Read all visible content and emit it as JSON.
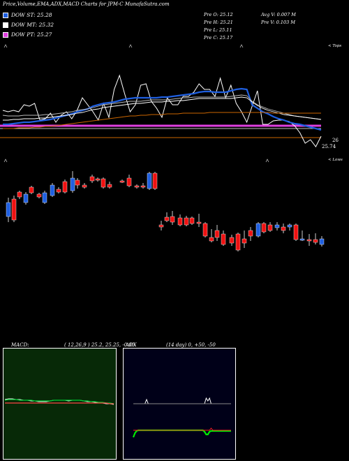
{
  "header": {
    "title": "Price,Volume,EMA,ADX,MACD Charts for JPM-C MunafaSutra.com",
    "legend": [
      {
        "label": "DOW ST: 25.28",
        "color": "#1f5fe0"
      },
      {
        "label": "DOW MT: 25.32",
        "color": "#ffffff"
      },
      {
        "label": "DOW PT: 25.27",
        "color": "#e040e0"
      }
    ],
    "info": [
      {
        "text": "Pre   O: 25.12"
      },
      {
        "text": "Pre   H: 25.21"
      },
      {
        "text": "Pre   L: 25.11"
      },
      {
        "text": "Pre   C: 25.17"
      },
      {
        "text": "Avg V: 0.007 M"
      },
      {
        "text": "Pre   V: 0.103 M"
      }
    ]
  },
  "top_right_label": "< Tops",
  "bottom_right_label": "< Lows",
  "macd_label": "MACD:",
  "macd_params": "( 12,26,9 ) 25.2, 25.25, -0.05",
  "adx_label": "ADX",
  "adx_params": "(14  day) 0, +50, -50",
  "chart_data": [
    {
      "type": "line",
      "name": "ema-panel",
      "right_labels": [
        "26",
        "25.74"
      ],
      "x": [
        1,
        2,
        3,
        4,
        5,
        6,
        7,
        8,
        9,
        10,
        11,
        12,
        13,
        14,
        15,
        16,
        17,
        18,
        19,
        20,
        21,
        22,
        23,
        24,
        25,
        26,
        27,
        28,
        29,
        30,
        31,
        32,
        33,
        34,
        35,
        36,
        37,
        38,
        39,
        40,
        41,
        42,
        43,
        44,
        45,
        46,
        47,
        48,
        49,
        50,
        51,
        52,
        53,
        54,
        55,
        56,
        57,
        58,
        59,
        60,
        61
      ],
      "series": [
        {
          "color": "#ffffff",
          "values": [
            158,
            160,
            158,
            160,
            150,
            152,
            148,
            172,
            170,
            162,
            175,
            165,
            160,
            170,
            158,
            140,
            150,
            160,
            172,
            148,
            168,
            128,
            108,
            135,
            160,
            150,
            122,
            120,
            145,
            155,
            168,
            140,
            150,
            150,
            138,
            138,
            132,
            120,
            128,
            128,
            138,
            112,
            140,
            122,
            148,
            160,
            175,
            152,
            130,
            178,
            178,
            173,
            172,
            172,
            174,
            180,
            190,
            205,
            200,
            210,
            195
          ]
        },
        {
          "color": "#1f5fe0",
          "values": [
            178,
            178,
            177,
            176,
            175,
            175,
            174,
            173,
            172,
            171,
            169,
            167,
            165,
            163,
            160,
            158,
            156,
            152,
            150,
            148,
            147,
            146,
            144,
            142,
            141,
            140,
            140,
            140,
            140,
            140,
            139,
            139,
            138,
            137,
            136,
            135,
            134,
            132,
            131,
            131,
            132,
            132,
            132,
            130,
            128,
            127,
            128,
            150,
            155,
            160,
            163,
            167,
            170,
            172,
            175,
            177,
            178,
            180,
            182,
            184,
            186
          ]
        },
        {
          "color": "#bbbbbb",
          "values": [
            165,
            166,
            166,
            166,
            165,
            165,
            165,
            165,
            164,
            164,
            163,
            162,
            161,
            160,
            158,
            157,
            156,
            154,
            152,
            150,
            149,
            148,
            147,
            146,
            145,
            145,
            145,
            144,
            143,
            143,
            143,
            143,
            142,
            141,
            140,
            140,
            139,
            139,
            139,
            139,
            139,
            139,
            139,
            138,
            137,
            136,
            137,
            145,
            150,
            153,
            156,
            158,
            160,
            162,
            164,
            166,
            167,
            168,
            169,
            170,
            171
          ]
        },
        {
          "color": "#ffffff",
          "values": [
            172,
            172,
            171,
            171,
            170,
            170,
            170,
            169,
            169,
            168,
            167,
            166,
            165,
            164,
            162,
            161,
            159,
            157,
            156,
            154,
            153,
            152,
            151,
            150,
            149,
            148,
            148,
            147,
            146,
            146,
            146,
            145,
            145,
            144,
            144,
            143,
            142,
            141,
            141,
            141,
            141,
            141,
            141,
            141,
            140,
            139,
            140,
            146,
            151,
            155,
            158,
            160,
            162,
            164,
            165,
            166,
            167,
            168,
            169,
            170,
            171
          ]
        },
        {
          "color": "#cc6600",
          "values": [
            184,
            184,
            184,
            183,
            183,
            183,
            182,
            182,
            181,
            181,
            180,
            179,
            178,
            177,
            176,
            175,
            174,
            173,
            172,
            171,
            170,
            169,
            168,
            167,
            166,
            166,
            165,
            165,
            164,
            164,
            164,
            163,
            163,
            163,
            162,
            162,
            162,
            162,
            162,
            161,
            161,
            161,
            161,
            161,
            161,
            161,
            161,
            161,
            161,
            161,
            161,
            162,
            162,
            162,
            162,
            162,
            162,
            162,
            162,
            162,
            162
          ]
        }
      ],
      "pink_line": 180,
      "orange_line": 197
    },
    {
      "type": "bar",
      "name": "price-candles",
      "candles": [
        {
          "x": 12,
          "o": 310,
          "c": 290,
          "h": 318,
          "l": 283
        },
        {
          "x": 20,
          "o": 285,
          "c": 315,
          "h": 318,
          "l": 280
        },
        {
          "x": 28,
          "o": 275,
          "c": 282,
          "h": 285,
          "l": 273
        },
        {
          "x": 37,
          "o": 290,
          "c": 278,
          "h": 293,
          "l": 275
        },
        {
          "x": 45,
          "o": 268,
          "c": 276,
          "h": 278,
          "l": 266
        },
        {
          "x": 56,
          "o": 278,
          "c": 282,
          "h": 284,
          "l": 276
        },
        {
          "x": 64,
          "o": 290,
          "c": 276,
          "h": 292,
          "l": 273
        },
        {
          "x": 75,
          "o": 280,
          "c": 265,
          "h": 282,
          "l": 262
        },
        {
          "x": 84,
          "o": 271,
          "c": 275,
          "h": 277,
          "l": 268
        },
        {
          "x": 93,
          "o": 260,
          "c": 275,
          "h": 277,
          "l": 257
        },
        {
          "x": 104,
          "o": 273,
          "c": 255,
          "h": 276,
          "l": 245
        },
        {
          "x": 111,
          "o": 258,
          "c": 265,
          "h": 270,
          "l": 255
        },
        {
          "x": 121,
          "o": 265,
          "c": 268,
          "h": 270,
          "l": 262
        },
        {
          "x": 132,
          "o": 253,
          "c": 259,
          "h": 262,
          "l": 250
        },
        {
          "x": 140,
          "o": 256,
          "c": 258,
          "h": 260,
          "l": 254
        },
        {
          "x": 148,
          "o": 256,
          "c": 268,
          "h": 270,
          "l": 254
        },
        {
          "x": 157,
          "o": 264,
          "c": 268,
          "h": 270,
          "l": 260
        },
        {
          "x": 175,
          "o": 259,
          "c": 260,
          "h": 262,
          "l": 257
        },
        {
          "x": 185,
          "o": 255,
          "c": 266,
          "h": 268,
          "l": 250
        },
        {
          "x": 196,
          "o": 266,
          "c": 268,
          "h": 270,
          "l": 264
        },
        {
          "x": 205,
          "o": 266,
          "c": 268,
          "h": 270,
          "l": 262
        },
        {
          "x": 214,
          "o": 270,
          "c": 248,
          "h": 272,
          "l": 246
        },
        {
          "x": 222,
          "o": 248,
          "c": 270,
          "h": 272,
          "l": 246
        },
        {
          "x": 231,
          "o": 322,
          "c": 325,
          "h": 330,
          "l": 316
        },
        {
          "x": 239,
          "o": 311,
          "c": 316,
          "h": 318,
          "l": 304
        },
        {
          "x": 247,
          "o": 310,
          "c": 318,
          "h": 322,
          "l": 302
        },
        {
          "x": 258,
          "o": 312,
          "c": 322,
          "h": 324,
          "l": 307
        },
        {
          "x": 267,
          "o": 312,
          "c": 322,
          "h": 324,
          "l": 309
        },
        {
          "x": 275,
          "o": 312,
          "c": 320,
          "h": 322,
          "l": 310
        },
        {
          "x": 285,
          "o": 318,
          "c": 320,
          "h": 325,
          "l": 306
        },
        {
          "x": 294,
          "o": 320,
          "c": 338,
          "h": 340,
          "l": 318
        },
        {
          "x": 303,
          "o": 340,
          "c": 345,
          "h": 347,
          "l": 328
        },
        {
          "x": 311,
          "o": 330,
          "c": 340,
          "h": 345,
          "l": 322
        },
        {
          "x": 320,
          "o": 335,
          "c": 350,
          "h": 352,
          "l": 330
        },
        {
          "x": 332,
          "o": 340,
          "c": 348,
          "h": 352,
          "l": 336
        },
        {
          "x": 341,
          "o": 335,
          "c": 358,
          "h": 360,
          "l": 333
        },
        {
          "x": 350,
          "o": 342,
          "c": 348,
          "h": 355,
          "l": 330
        },
        {
          "x": 359,
          "o": 330,
          "c": 338,
          "h": 345,
          "l": 325
        },
        {
          "x": 370,
          "o": 338,
          "c": 320,
          "h": 340,
          "l": 318
        },
        {
          "x": 378,
          "o": 320,
          "c": 332,
          "h": 334,
          "l": 318
        },
        {
          "x": 387,
          "o": 322,
          "c": 330,
          "h": 332,
          "l": 318
        },
        {
          "x": 397,
          "o": 326,
          "c": 322,
          "h": 330,
          "l": 318
        },
        {
          "x": 406,
          "o": 325,
          "c": 330,
          "h": 334,
          "l": 320
        },
        {
          "x": 415,
          "o": 325,
          "c": 322,
          "h": 330,
          "l": 320
        },
        {
          "x": 424,
          "o": 322,
          "c": 343,
          "h": 345,
          "l": 320
        },
        {
          "x": 433,
          "o": 343,
          "c": 342,
          "h": 345,
          "l": 330
        },
        {
          "x": 443,
          "o": 343,
          "c": 345,
          "h": 352,
          "l": 335
        },
        {
          "x": 452,
          "o": 343,
          "c": 347,
          "h": 350,
          "l": 334
        },
        {
          "x": 461,
          "o": 350,
          "c": 342,
          "h": 353,
          "l": 338
        }
      ]
    },
    {
      "type": "line",
      "name": "macd-panel",
      "series": [
        {
          "color": "#ffffff",
          "values": [
            5,
            6,
            6,
            5,
            5,
            4,
            4,
            3,
            3,
            2,
            2,
            2,
            3,
            4,
            4,
            4,
            4,
            3,
            4,
            4,
            4,
            3,
            2,
            2,
            1,
            1,
            0,
            -1,
            -1,
            -2
          ]
        },
        {
          "color": "#00cc33",
          "values": [
            4,
            5,
            5,
            5,
            4,
            4,
            4,
            4,
            3,
            3,
            3,
            3,
            3,
            4,
            4,
            4,
            4,
            4,
            4,
            4,
            4,
            3,
            3,
            2,
            2,
            1,
            1,
            0,
            0,
            -1
          ]
        },
        {
          "color": "#ff4444",
          "values": [
            0,
            0,
            0,
            0,
            0,
            0,
            0,
            0,
            0,
            0,
            0,
            0,
            0,
            0,
            0,
            0,
            0,
            0,
            0,
            0,
            0,
            0,
            0,
            0,
            0,
            0,
            0,
            0,
            -1,
            -1
          ]
        }
      ]
    },
    {
      "type": "line",
      "name": "adx-panel",
      "series": [
        {
          "color": "#ffffff",
          "values": [
            0,
            0,
            0,
            0,
            0,
            0,
            0,
            0,
            6,
            0,
            0,
            0,
            0,
            0,
            0,
            0,
            0,
            0,
            0,
            0,
            0,
            0,
            0,
            0,
            0,
            0,
            0,
            0,
            0,
            0,
            0,
            0,
            0,
            0,
            0,
            0,
            0,
            0,
            0,
            0,
            0,
            0,
            0,
            0,
            8,
            4,
            8,
            0,
            0,
            0,
            0,
            0,
            0,
            0,
            0,
            0,
            0,
            0,
            0,
            0
          ]
        },
        {
          "color": "#888888",
          "values": [
            0,
            0,
            0,
            0,
            0,
            0,
            0,
            0,
            0,
            0,
            0,
            0,
            0,
            0,
            0,
            0,
            0,
            0,
            0,
            0,
            0,
            0,
            0,
            0,
            0,
            0,
            0,
            0,
            0,
            0,
            0,
            0,
            0,
            0,
            0,
            0,
            0,
            0,
            0,
            0,
            0,
            0,
            0,
            0,
            0,
            0,
            0,
            0,
            0,
            0,
            0,
            0,
            0,
            0,
            0,
            0,
            0,
            0,
            0,
            0
          ]
        },
        {
          "color": "#00ee00",
          "values": [
            -10,
            -4,
            -1,
            0,
            0,
            0,
            0,
            0,
            0,
            0,
            0,
            0,
            0,
            0,
            0,
            0,
            0,
            0,
            0,
            0,
            0,
            0,
            0,
            0,
            0,
            0,
            0,
            0,
            0,
            0,
            0,
            0,
            0,
            0,
            0,
            0,
            0,
            0,
            0,
            0,
            0,
            0,
            0,
            -2,
            -6,
            -6,
            -2,
            -1,
            -1,
            -1,
            -1,
            -1,
            -1,
            -1,
            -1,
            -1,
            -1,
            -1,
            -1,
            -1
          ]
        },
        {
          "color": "#ff2222",
          "values": [
            0,
            0,
            0,
            0,
            0,
            0,
            0,
            0,
            0,
            0,
            0,
            0,
            0,
            0,
            0,
            0,
            0,
            0,
            0,
            0,
            0,
            0,
            0,
            0,
            0,
            0,
            0,
            0,
            0,
            0,
            0,
            0,
            0,
            0,
            0,
            0,
            0,
            0,
            0,
            0,
            0,
            0,
            0,
            0,
            0,
            0,
            0,
            3,
            0,
            0,
            0,
            0,
            0,
            0,
            0,
            0,
            0,
            0,
            0,
            0
          ]
        }
      ]
    }
  ]
}
